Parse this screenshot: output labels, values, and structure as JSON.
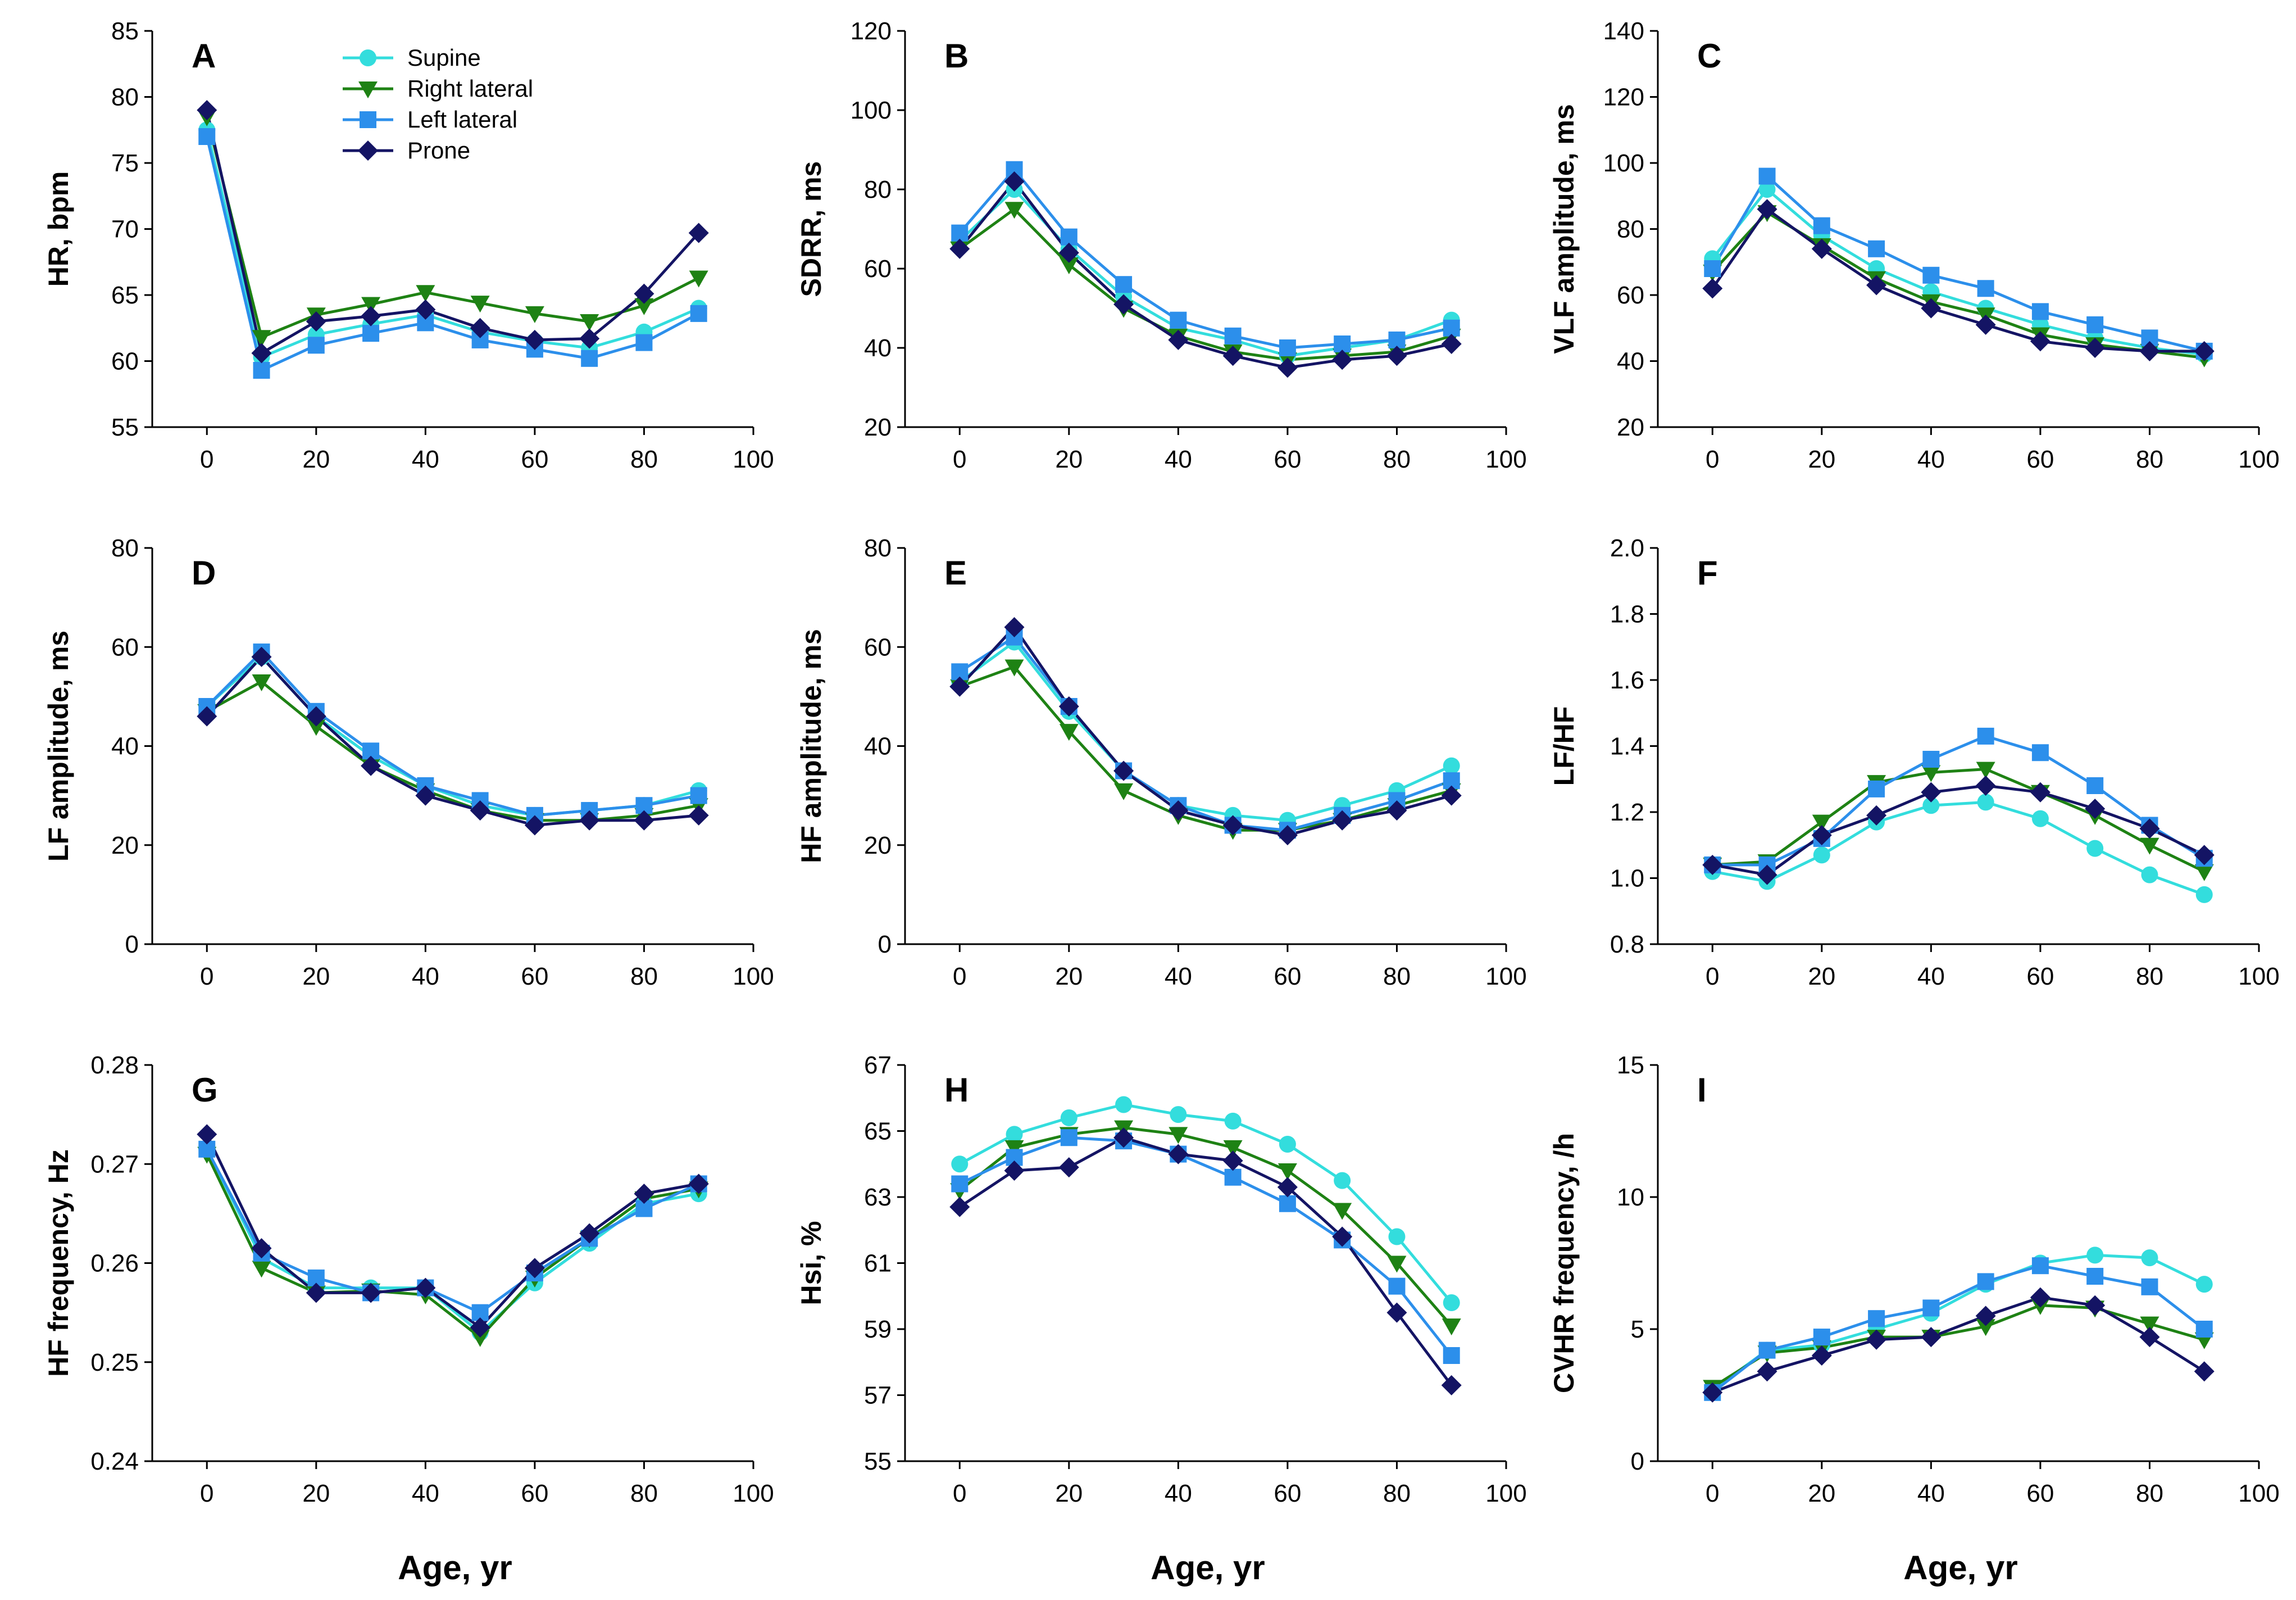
{
  "series_styles": [
    {
      "name": "Supine",
      "color": "#33DDDD",
      "marker": "circle"
    },
    {
      "name": "Right lateral",
      "color": "#1E8214",
      "marker": "triangle-down"
    },
    {
      "name": "Left lateral",
      "color": "#2C8FEB",
      "marker": "square"
    },
    {
      "name": "Prone",
      "color": "#141464",
      "marker": "diamond"
    }
  ],
  "legend": {
    "labels": [
      "Supine",
      "Right lateral",
      "Left lateral",
      "Prone"
    ],
    "placement": "top-left of panel A"
  },
  "xlabel": "Age, yr",
  "chart_data": [
    {
      "panel": "A",
      "type": "line",
      "ylabel": "HR, bpm",
      "xlim": [
        -10,
        100
      ],
      "ylim": [
        55,
        85
      ],
      "xticks": [
        "0",
        "20",
        "40",
        "60",
        "80",
        "100"
      ],
      "yticks": [
        "55",
        "60",
        "65",
        "70",
        "75",
        "80",
        "85"
      ],
      "x": [
        0,
        10,
        20,
        30,
        40,
        50,
        60,
        70,
        80,
        90
      ],
      "series": [
        {
          "name": "Supine",
          "values": [
            77.5,
            60.3,
            62.0,
            62.8,
            63.5,
            62.2,
            61.5,
            61.0,
            62.2,
            64.0
          ]
        },
        {
          "name": "Right lateral",
          "values": [
            78.5,
            61.8,
            63.5,
            64.3,
            65.2,
            64.4,
            63.6,
            63.0,
            64.2,
            66.3
          ]
        },
        {
          "name": "Left lateral",
          "values": [
            77.0,
            59.3,
            61.2,
            62.1,
            62.9,
            61.6,
            60.9,
            60.2,
            61.4,
            63.6
          ]
        },
        {
          "name": "Prone",
          "values": [
            79.0,
            60.6,
            63.0,
            63.4,
            63.9,
            62.5,
            61.6,
            61.7,
            65.1,
            69.7
          ]
        }
      ]
    },
    {
      "panel": "B",
      "type": "line",
      "ylabel": "SDRR, ms",
      "xlim": [
        -10,
        100
      ],
      "ylim": [
        20,
        120
      ],
      "xticks": [
        "0",
        "20",
        "40",
        "60",
        "80",
        "100"
      ],
      "yticks": [
        "20",
        "40",
        "60",
        "80",
        "100",
        "120"
      ],
      "x": [
        0,
        10,
        20,
        30,
        40,
        50,
        60,
        70,
        80,
        90
      ],
      "series": [
        {
          "name": "Supine",
          "values": [
            67,
            80,
            65,
            53,
            45,
            42,
            38,
            40,
            42,
            47
          ]
        },
        {
          "name": "Right lateral",
          "values": [
            65,
            75,
            61,
            50,
            43,
            39,
            37,
            38,
            39,
            43
          ]
        },
        {
          "name": "Left lateral",
          "values": [
            69,
            85,
            68,
            56,
            47,
            43,
            40,
            41,
            42,
            45
          ]
        },
        {
          "name": "Prone",
          "values": [
            65,
            82,
            64,
            51,
            42,
            38,
            35,
            37,
            38,
            41
          ]
        }
      ]
    },
    {
      "panel": "C",
      "type": "line",
      "ylabel": "VLF amplitude, ms",
      "xlim": [
        -10,
        100
      ],
      "ylim": [
        20,
        140
      ],
      "xticks": [
        "0",
        "20",
        "40",
        "60",
        "80",
        "100"
      ],
      "yticks": [
        "20",
        "40",
        "60",
        "80",
        "100",
        "120",
        "140"
      ],
      "x": [
        0,
        10,
        20,
        30,
        40,
        50,
        60,
        70,
        80,
        90
      ],
      "series": [
        {
          "name": "Supine",
          "values": [
            71,
            92,
            78,
            68,
            61,
            56,
            51,
            47,
            44,
            42
          ]
        },
        {
          "name": "Right lateral",
          "values": [
            67,
            85,
            75,
            65,
            58,
            54,
            48,
            45,
            43,
            41
          ]
        },
        {
          "name": "Left lateral",
          "values": [
            68,
            96,
            81,
            74,
            66,
            62,
            55,
            51,
            47,
            43
          ]
        },
        {
          "name": "Prone",
          "values": [
            62,
            86,
            74,
            63,
            56,
            51,
            46,
            44,
            43,
            43
          ]
        }
      ]
    },
    {
      "panel": "D",
      "type": "line",
      "ylabel": "LF amplitude, ms",
      "xlim": [
        -10,
        100
      ],
      "ylim": [
        0,
        80
      ],
      "xticks": [
        "0",
        "20",
        "40",
        "60",
        "80",
        "100"
      ],
      "yticks": [
        "0",
        "20",
        "40",
        "60",
        "80"
      ],
      "x": [
        0,
        10,
        20,
        30,
        40,
        50,
        60,
        70,
        80,
        90
      ],
      "series": [
        {
          "name": "Supine",
          "values": [
            48,
            58,
            46,
            38,
            32,
            28,
            26,
            27,
            28,
            31
          ]
        },
        {
          "name": "Right lateral",
          "values": [
            47,
            53,
            44,
            36,
            31,
            27,
            25,
            25,
            26,
            28
          ]
        },
        {
          "name": "Left lateral",
          "values": [
            48,
            59,
            47,
            39,
            32,
            29,
            26,
            27,
            28,
            30
          ]
        },
        {
          "name": "Prone",
          "values": [
            46,
            58,
            46,
            36,
            30,
            27,
            24,
            25,
            25,
            26
          ]
        }
      ]
    },
    {
      "panel": "E",
      "type": "line",
      "ylabel": "HF amplitude, ms",
      "xlim": [
        -10,
        100
      ],
      "ylim": [
        0,
        80
      ],
      "xticks": [
        "0",
        "20",
        "40",
        "60",
        "80",
        "100"
      ],
      "yticks": [
        "0",
        "20",
        "40",
        "60",
        "80"
      ],
      "x": [
        0,
        10,
        20,
        30,
        40,
        50,
        60,
        70,
        80,
        90
      ],
      "series": [
        {
          "name": "Supine",
          "values": [
            53,
            61,
            47,
            35,
            28,
            26,
            25,
            28,
            31,
            36
          ]
        },
        {
          "name": "Right lateral",
          "values": [
            52,
            56,
            43,
            31,
            26,
            23,
            23,
            25,
            28,
            31
          ]
        },
        {
          "name": "Left lateral",
          "values": [
            55,
            62,
            48,
            35,
            28,
            24,
            23,
            26,
            29,
            33
          ]
        },
        {
          "name": "Prone",
          "values": [
            52,
            64,
            48,
            35,
            27,
            24,
            22,
            25,
            27,
            30
          ]
        }
      ]
    },
    {
      "panel": "F",
      "type": "line",
      "ylabel": "LF/HF",
      "xlim": [
        -10,
        100
      ],
      "ylim": [
        0.8,
        2.0
      ],
      "xticks": [
        "0",
        "20",
        "40",
        "60",
        "80",
        "100"
      ],
      "yticks": [
        "0.8",
        "1.0",
        "1.2",
        "1.4",
        "1.6",
        "1.8",
        "2.0"
      ],
      "x": [
        0,
        10,
        20,
        30,
        40,
        50,
        60,
        70,
        80,
        90
      ],
      "series": [
        {
          "name": "Supine",
          "values": [
            1.02,
            0.99,
            1.07,
            1.17,
            1.22,
            1.23,
            1.18,
            1.09,
            1.01,
            0.95
          ]
        },
        {
          "name": "Right lateral",
          "values": [
            1.04,
            1.05,
            1.17,
            1.29,
            1.32,
            1.33,
            1.26,
            1.19,
            1.1,
            1.02
          ]
        },
        {
          "name": "Left lateral",
          "values": [
            1.04,
            1.04,
            1.12,
            1.27,
            1.36,
            1.43,
            1.38,
            1.28,
            1.16,
            1.06
          ]
        },
        {
          "name": "Prone",
          "values": [
            1.04,
            1.01,
            1.13,
            1.19,
            1.26,
            1.28,
            1.26,
            1.21,
            1.15,
            1.07
          ]
        }
      ]
    },
    {
      "panel": "G",
      "type": "line",
      "ylabel": "HF frequency, Hz",
      "xlim": [
        -10,
        100
      ],
      "ylim": [
        0.24,
        0.28
      ],
      "xticks": [
        "0",
        "20",
        "40",
        "60",
        "80",
        "100"
      ],
      "yticks": [
        "0.24",
        "0.25",
        "0.26",
        "0.27",
        "0.28"
      ],
      "x": [
        0,
        10,
        20,
        30,
        40,
        50,
        60,
        70,
        80,
        90
      ],
      "series": [
        {
          "name": "Supine",
          "values": [
            0.2715,
            0.2605,
            0.2575,
            0.2575,
            0.2575,
            0.253,
            0.258,
            0.262,
            0.266,
            0.267
          ]
        },
        {
          "name": "Right lateral",
          "values": [
            0.271,
            0.2595,
            0.257,
            0.2572,
            0.2568,
            0.2525,
            0.2585,
            0.2625,
            0.2665,
            0.2675
          ]
        },
        {
          "name": "Left lateral",
          "values": [
            0.2715,
            0.261,
            0.2585,
            0.257,
            0.2575,
            0.255,
            0.259,
            0.2625,
            0.2655,
            0.268
          ]
        },
        {
          "name": "Prone",
          "values": [
            0.273,
            0.2615,
            0.257,
            0.257,
            0.2575,
            0.2535,
            0.2595,
            0.263,
            0.267,
            0.268
          ]
        }
      ]
    },
    {
      "panel": "H",
      "type": "line",
      "ylabel": "Hsi, %",
      "xlim": [
        -10,
        100
      ],
      "ylim": [
        55,
        67
      ],
      "xticks": [
        "0",
        "20",
        "40",
        "60",
        "80",
        "100"
      ],
      "yticks": [
        "55",
        "57",
        "59",
        "61",
        "63",
        "65",
        "67"
      ],
      "x": [
        0,
        10,
        20,
        30,
        40,
        50,
        60,
        70,
        80,
        90
      ],
      "series": [
        {
          "name": "Supine",
          "values": [
            64.0,
            64.9,
            65.4,
            65.8,
            65.5,
            65.3,
            64.6,
            63.5,
            61.8,
            59.8
          ]
        },
        {
          "name": "Right lateral",
          "values": [
            63.2,
            64.5,
            64.9,
            65.1,
            64.9,
            64.5,
            63.8,
            62.6,
            61.0,
            59.1
          ]
        },
        {
          "name": "Left lateral",
          "values": [
            63.4,
            64.2,
            64.8,
            64.7,
            64.3,
            63.6,
            62.8,
            61.7,
            60.3,
            58.2
          ]
        },
        {
          "name": "Prone",
          "values": [
            62.7,
            63.8,
            63.9,
            64.8,
            64.3,
            64.1,
            63.3,
            61.8,
            59.5,
            57.3
          ]
        }
      ]
    },
    {
      "panel": "I",
      "type": "line",
      "ylabel": "CVHR frequency, /h",
      "xlim": [
        -10,
        100
      ],
      "ylim": [
        0,
        15
      ],
      "xticks": [
        "0",
        "20",
        "40",
        "60",
        "80",
        "100"
      ],
      "yticks": [
        "0",
        "5",
        "10",
        "15"
      ],
      "x": [
        0,
        10,
        20,
        30,
        40,
        50,
        60,
        70,
        80,
        90
      ],
      "series": [
        {
          "name": "Supine",
          "values": [
            2.7,
            4.2,
            4.4,
            5.0,
            5.6,
            6.7,
            7.5,
            7.8,
            7.7,
            6.7
          ]
        },
        {
          "name": "Right lateral",
          "values": [
            2.8,
            4.1,
            4.3,
            4.7,
            4.7,
            5.1,
            5.9,
            5.8,
            5.2,
            4.6
          ]
        },
        {
          "name": "Left lateral",
          "values": [
            2.6,
            4.2,
            4.7,
            5.4,
            5.8,
            6.8,
            7.4,
            7.0,
            6.6,
            5.0
          ]
        },
        {
          "name": "Prone",
          "values": [
            2.6,
            3.4,
            4.0,
            4.6,
            4.7,
            5.5,
            6.2,
            5.9,
            4.7,
            3.4
          ]
        }
      ]
    }
  ]
}
